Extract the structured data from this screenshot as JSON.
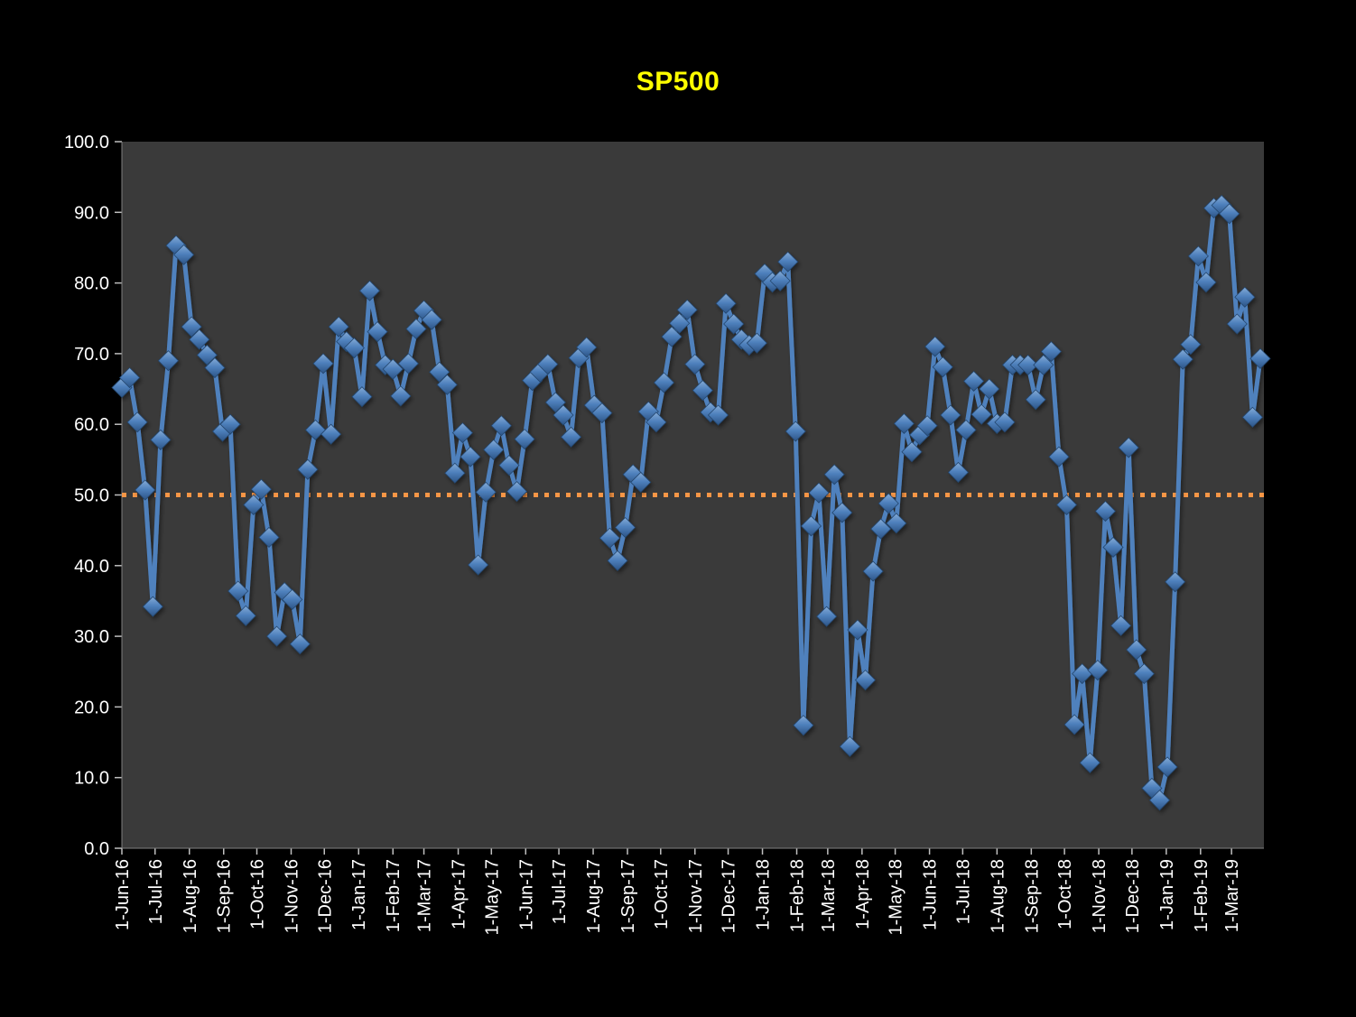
{
  "page": {
    "outer_background": "#000000"
  },
  "chart_data": {
    "type": "line",
    "title": "SP500",
    "title_color": "#FFFF00",
    "plot_background": "#3A3A3A",
    "outer_background": "#000000",
    "axis_text_color": "#FFFFFF",
    "tick_color": "#BFBFBF",
    "axis_line_color": "#808080",
    "grid": "off",
    "legend": "none",
    "ylim": [
      0,
      100
    ],
    "y_tick_labels": [
      "0.0",
      "10.0",
      "20.0",
      "30.0",
      "40.0",
      "50.0",
      "60.0",
      "70.0",
      "80.0",
      "90.0",
      "100.0"
    ],
    "x_frequency": "weekly",
    "x_start_label": "1-Jun-16",
    "x_tick_labels": [
      "1-Jun-16",
      "1-Jul-16",
      "1-Aug-16",
      "1-Sep-16",
      "1-Oct-16",
      "1-Nov-16",
      "1-Dec-16",
      "1-Jan-17",
      "1-Feb-17",
      "1-Mar-17",
      "1-Apr-17",
      "1-May-17",
      "1-Jun-17",
      "1-Jul-17",
      "1-Aug-17",
      "1-Sep-17",
      "1-Oct-17",
      "1-Nov-17",
      "1-Dec-17",
      "1-Jan-18",
      "1-Feb-18",
      "1-Mar-18",
      "1-Apr-18",
      "1-May-18",
      "1-Jun-18",
      "1-Jul-18",
      "1-Aug-18",
      "1-Sep-18",
      "1-Oct-18",
      "1-Nov-18",
      "1-Dec-18",
      "1-Jan-19",
      "1-Feb-19",
      "1-Mar-19"
    ],
    "reference_line": {
      "value": 50,
      "color": "#F79646",
      "style": "dotted"
    },
    "series": [
      {
        "name": "SP500",
        "color": "#4F81BD",
        "marker": "diamond",
        "marker_gradient_top": "#85ABD6",
        "marker_gradient_bottom": "#2C5486",
        "values": [
          65.2,
          66.6,
          60.3,
          50.7,
          34.2,
          57.8,
          69.0,
          85.3,
          84.0,
          73.8,
          72.0,
          69.8,
          68.0,
          59.0,
          60.0,
          36.4,
          32.9,
          48.6,
          50.8,
          44.0,
          30.0,
          36.2,
          35.2,
          28.9,
          53.6,
          59.2,
          68.6,
          58.6,
          73.8,
          71.7,
          70.8,
          63.9,
          78.9,
          73.1,
          68.4,
          67.8,
          64.0,
          68.6,
          73.5,
          76.1,
          74.8,
          67.4,
          65.6,
          53.1,
          58.8,
          55.4,
          40.1,
          50.4,
          56.4,
          59.8,
          54.2,
          50.5,
          57.9,
          66.2,
          67.4,
          68.5,
          63.1,
          61.3,
          58.2,
          69.4,
          70.9,
          62.7,
          61.6,
          43.9,
          40.7,
          45.4,
          52.9,
          51.8,
          61.8,
          60.3,
          65.9,
          72.4,
          74.3,
          76.2,
          68.5,
          64.8,
          61.7,
          61.3,
          77.1,
          74.2,
          72.0,
          71.2,
          71.5,
          81.3,
          80.1,
          80.3,
          83.0,
          59.0,
          17.4,
          45.6,
          50.3,
          32.8,
          52.9,
          47.5,
          14.4,
          30.9,
          23.8,
          39.2,
          45.2,
          48.8,
          46.0,
          60.1,
          56.1,
          58.5,
          59.8,
          71.0,
          68.1,
          61.3,
          53.2,
          59.2,
          66.1,
          61.4,
          65.0,
          60.1,
          60.3,
          68.4,
          68.4,
          68.4,
          63.5,
          68.4,
          70.3,
          55.4,
          48.6,
          17.5,
          24.7,
          12.1,
          25.2,
          47.7,
          42.6,
          31.5,
          56.7,
          28.1,
          24.7,
          8.5,
          6.8,
          11.5,
          37.7,
          69.2,
          71.3,
          83.8,
          80.1,
          90.6,
          91.0,
          89.8,
          74.2,
          78.0,
          61.0,
          69.3
        ]
      }
    ]
  }
}
